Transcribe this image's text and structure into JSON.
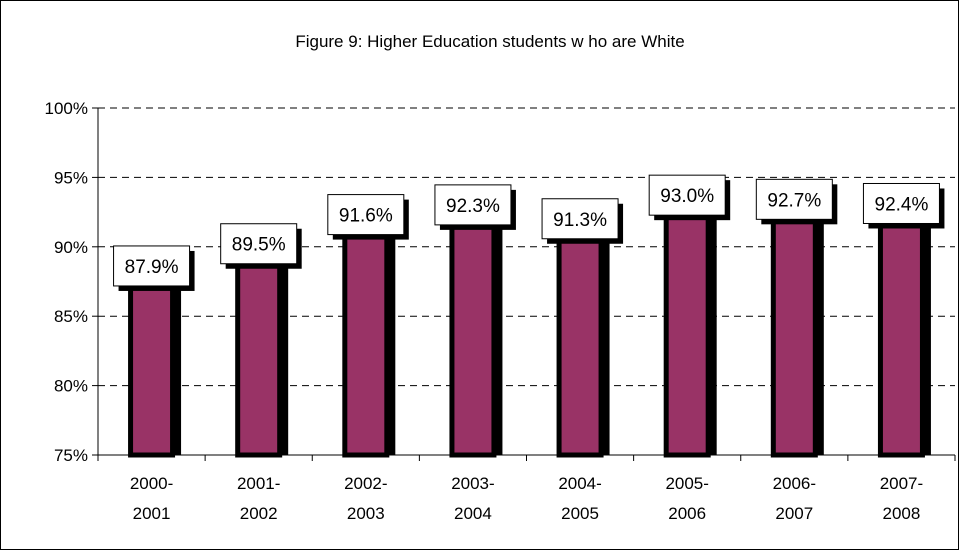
{
  "chart_data": {
    "type": "bar",
    "title": "Figure 9: Higher Education students w ho are White",
    "categories": [
      [
        "2000-",
        "2001"
      ],
      [
        "2001-",
        "2002"
      ],
      [
        "2002-",
        "2003"
      ],
      [
        "2003-",
        "2004"
      ],
      [
        "2004-",
        "2005"
      ],
      [
        "2005-",
        "2006"
      ],
      [
        "2006-",
        "2007"
      ],
      [
        "2007-",
        "2008"
      ]
    ],
    "values": [
      87.9,
      89.5,
      91.6,
      92.3,
      91.3,
      93.0,
      92.7,
      92.4
    ],
    "data_labels": [
      "87.9%",
      "89.5%",
      "91.6%",
      "92.3%",
      "91.3%",
      "93.0%",
      "92.7%",
      "92.4%"
    ],
    "ylim": [
      75,
      100
    ],
    "yticks": [
      75,
      80,
      85,
      90,
      95,
      100
    ],
    "ytick_labels": [
      "75%",
      "80%",
      "85%",
      "90%",
      "95%",
      "100%"
    ],
    "xlabel": "",
    "ylabel": "",
    "grid": true,
    "legend": "none",
    "colors": {
      "bar_fill": "#993366",
      "bar_outline": "#000000",
      "grid": "#000000",
      "label_box": "#ffffff"
    }
  }
}
